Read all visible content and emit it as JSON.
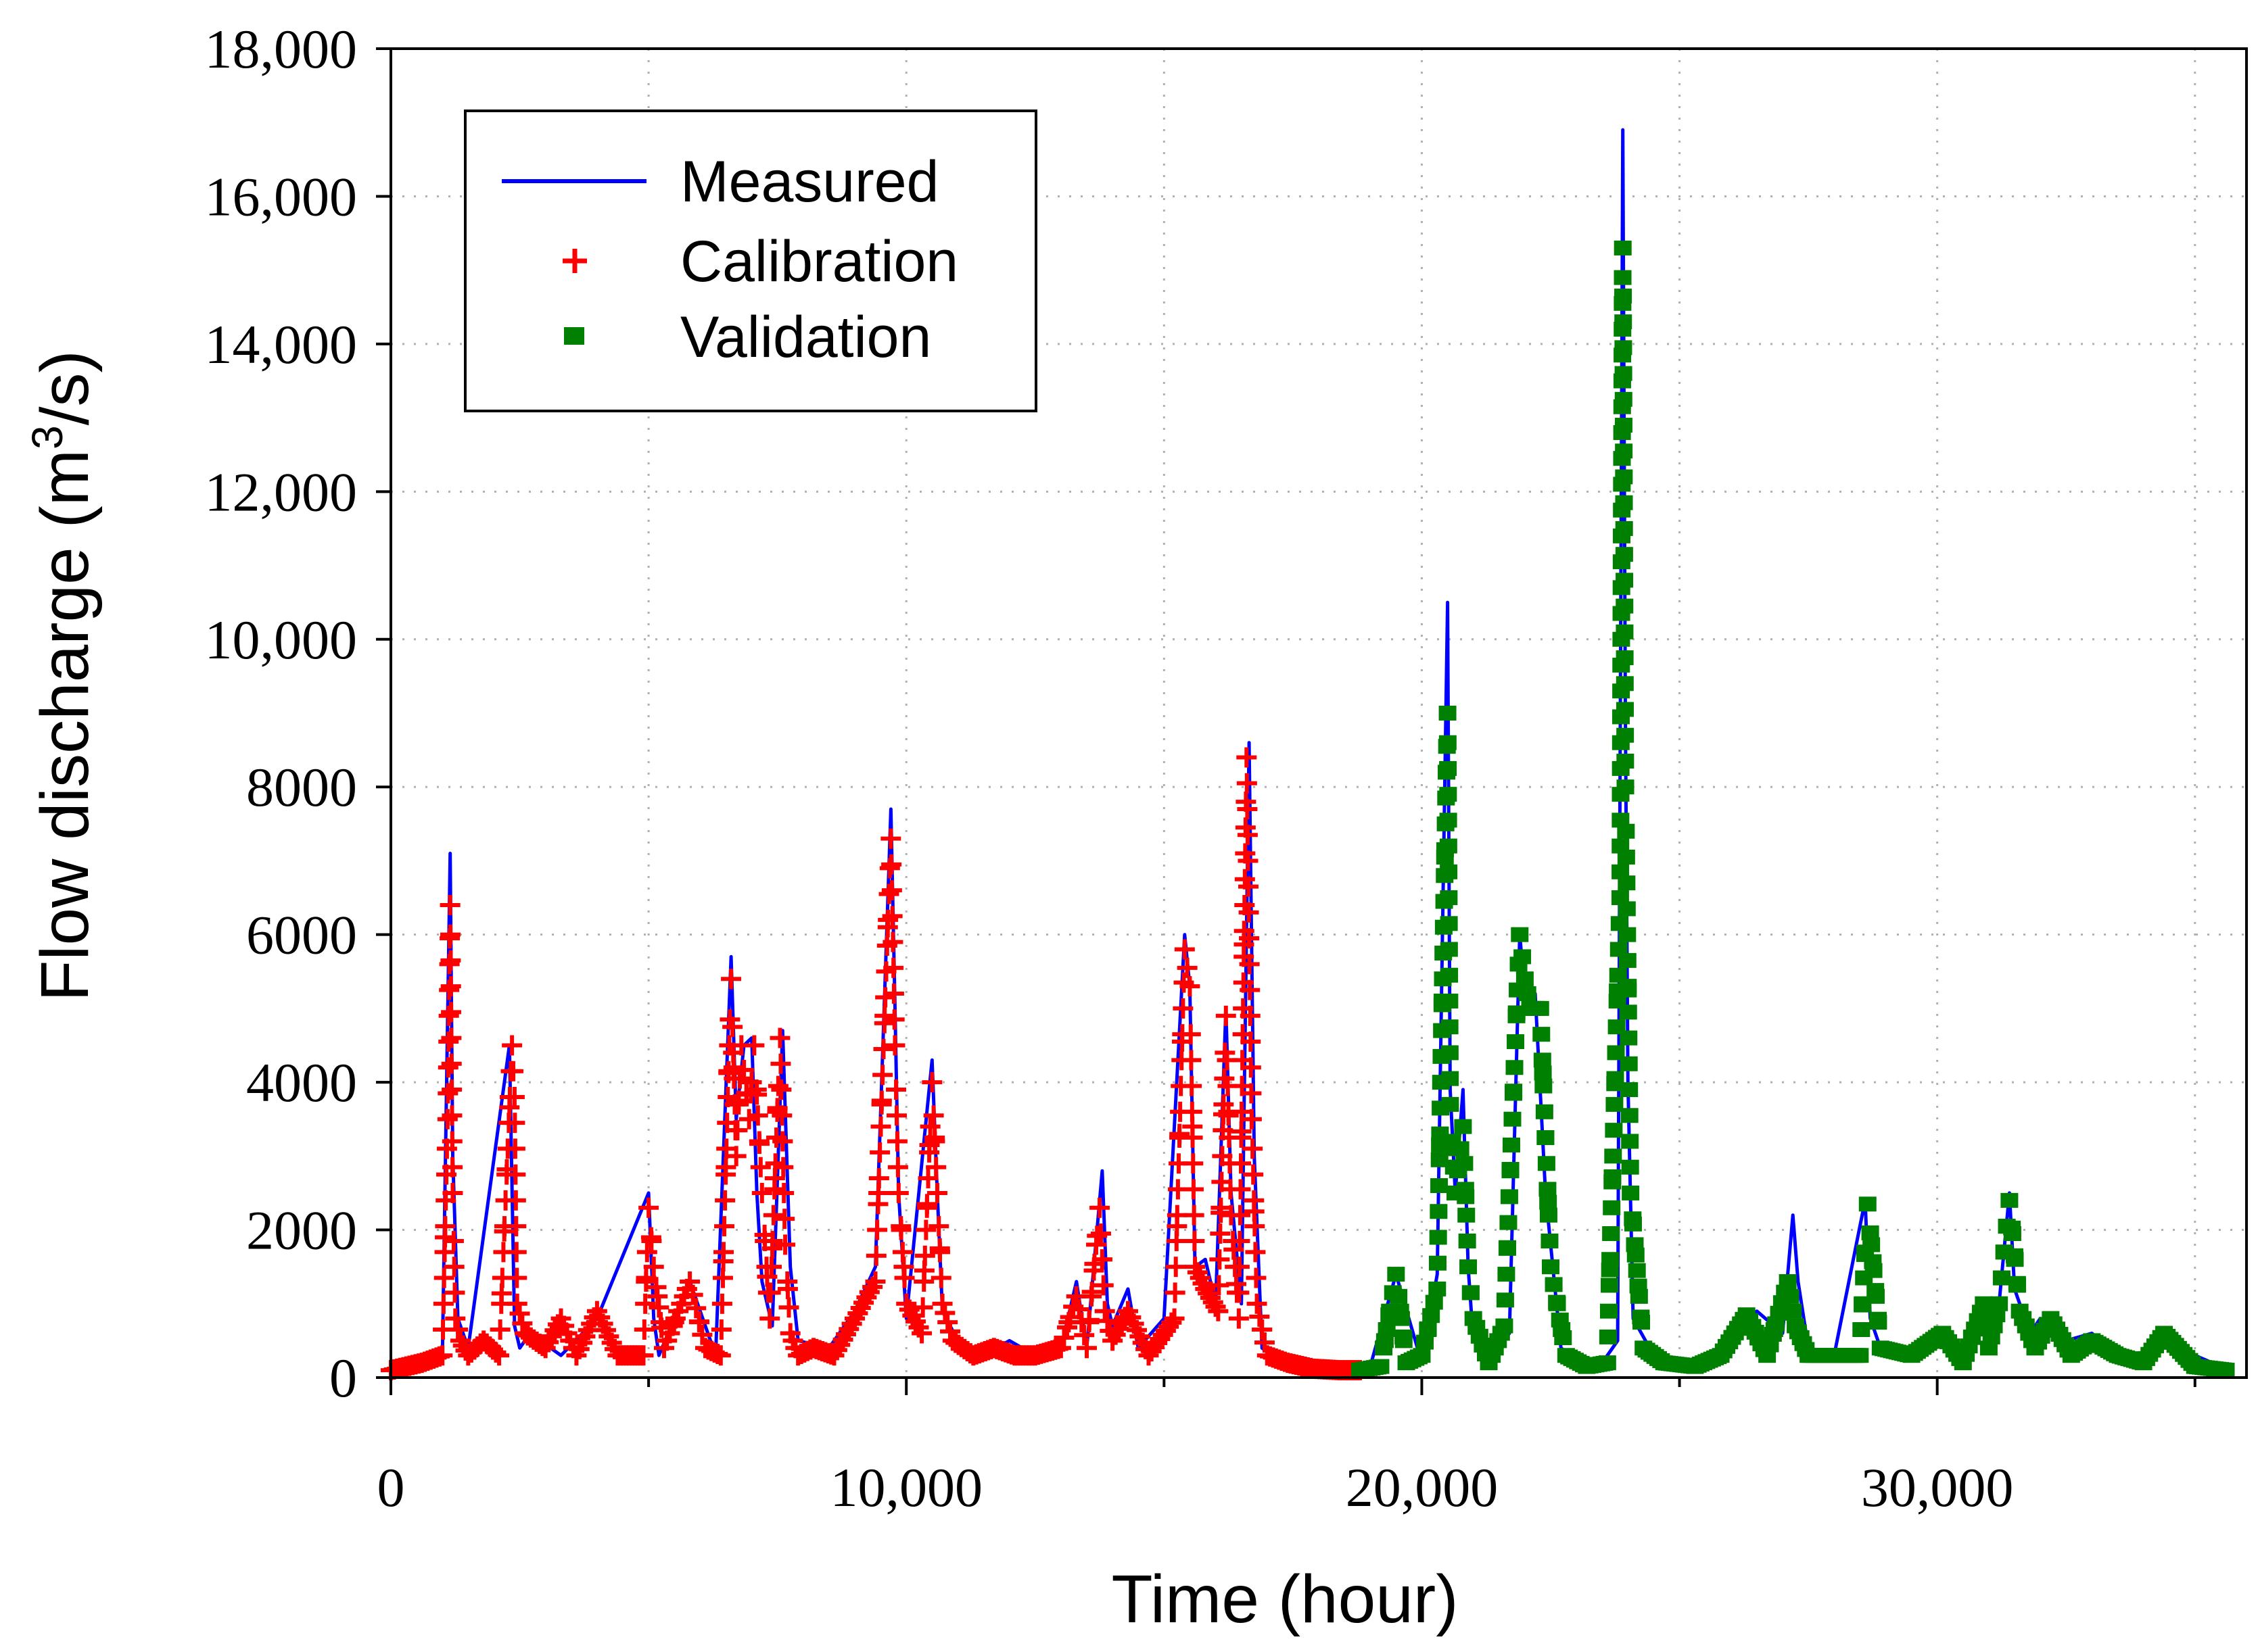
{
  "chart_data": {
    "type": "line",
    "xlabel": "Time (hour)",
    "ylabel_parts": [
      "Flow discharge (m",
      "3",
      "/s)"
    ],
    "xlim": [
      0,
      36000
    ],
    "ylim": [
      0,
      18000
    ],
    "x_ticks": [
      0,
      10000,
      20000,
      30000
    ],
    "x_tick_labels": [
      "0",
      "10,000",
      "20,000",
      "30,000"
    ],
    "x_minor_ticks": [
      5000,
      15000,
      25000,
      35000
    ],
    "y_ticks": [
      0,
      2000,
      4000,
      6000,
      8000,
      10000,
      12000,
      14000,
      16000,
      18000
    ],
    "y_tick_labels": [
      "0",
      "2000",
      "4000",
      "6000",
      "8000",
      "10,000",
      "12,000",
      "14,000",
      "16,000",
      "18,000"
    ],
    "legend": [
      {
        "label": "Measured",
        "marker": "line",
        "color": "#0000ff"
      },
      {
        "label": "Calibration",
        "marker": "+",
        "color": "#ff0000"
      },
      {
        "label": "Validation",
        "marker": "square",
        "color": "#008000"
      }
    ],
    "series": [
      {
        "name": "Measured",
        "color": "#0000ff",
        "x": [
          0,
          500,
          1000,
          1150,
          1200,
          1300,
          1500,
          2300,
          2400,
          2500,
          2700,
          3300,
          4000,
          5000,
          5100,
          5200,
          5800,
          6300,
          6600,
          6700,
          6850,
          7000,
          7100,
          7200,
          7400,
          7600,
          7750,
          7900,
          8500,
          9000,
          9400,
          9700,
          9780,
          9850,
          10000,
          10500,
          10600,
          10700,
          11000,
          11500,
          12000,
          12500,
          13000,
          13300,
          13500,
          13800,
          13900,
          14000,
          14300,
          14500,
          15000,
          15400,
          15500,
          15600,
          15800,
          16000,
          16200,
          16300,
          16500,
          16650,
          16750,
          16900,
          17300,
          18000,
          18500,
          19000,
          19500,
          20000,
          20300,
          20500,
          20550,
          20650,
          20800,
          20900,
          21000,
          21300,
          21700,
          21900,
          22000,
          22200,
          22400,
          22700,
          23000,
          23500,
          23800,
          23900,
          23950,
          24000,
          24100,
          24500,
          25000,
          25500,
          26000,
          26500,
          27000,
          27200,
          27300,
          27500,
          28000,
          28600,
          28700,
          28900,
          29500,
          30000,
          30500,
          30900,
          31000,
          31200,
          31400,
          31500,
          31800,
          32000,
          32500,
          33000,
          33500,
          34000,
          34500,
          35000,
          35500
        ],
        "y": [
          100,
          200,
          300,
          7100,
          3000,
          800,
          400,
          4500,
          700,
          400,
          600,
          300,
          800,
          2500,
          800,
          300,
          1300,
          300,
          5700,
          3500,
          4500,
          4600,
          2500,
          1300,
          700,
          4700,
          1500,
          500,
          400,
          900,
          1500,
          7700,
          5000,
          2500,
          800,
          4300,
          2500,
          900,
          500,
          300,
          500,
          300,
          400,
          1300,
          400,
          2800,
          1000,
          700,
          1200,
          400,
          800,
          6000,
          5300,
          1500,
          1600,
          1000,
          5000,
          2500,
          1000,
          8600,
          3000,
          400,
          200,
          100,
          120,
          150,
          1400,
          200,
          1400,
          10500,
          3900,
          2500,
          3900,
          1500,
          500,
          300,
          600,
          6000,
          5200,
          5200,
          2500,
          400,
          250,
          200,
          500,
          16900,
          9000,
          4000,
          800,
          300,
          200,
          200,
          400,
          900,
          600,
          2200,
          1300,
          400,
          300,
          2400,
          800,
          400,
          300,
          600,
          300,
          1000,
          800,
          1000,
          2500,
          1200,
          600,
          800,
          500,
          600,
          300,
          300,
          600,
          300,
          150
        ]
      },
      {
        "name": "Calibration",
        "color": "#ff0000",
        "x": [
          0,
          300,
          600,
          1000,
          1100,
          1150,
          1200,
          1250,
          1350,
          1500,
          1800,
          2100,
          2350,
          2400,
          2450,
          2600,
          3000,
          3300,
          3600,
          4000,
          4400,
          4900,
          5000,
          5100,
          5300,
          5800,
          6100,
          6400,
          6600,
          6700,
          6800,
          6950,
          7050,
          7200,
          7350,
          7550,
          7650,
          7750,
          7900,
          8200,
          8600,
          9000,
          9400,
          9700,
          9780,
          9850,
          10000,
          10300,
          10500,
          10600,
          10700,
          10900,
          11300,
          11700,
          12100,
          12500,
          13000,
          13300,
          13500,
          13750,
          13850,
          14000,
          14300,
          14700,
          15200,
          15400,
          15500,
          15600,
          15800,
          16050,
          16200,
          16300,
          16450,
          16600,
          16700,
          16800,
          17000,
          17400,
          17900,
          18400,
          18800
        ],
        "y": [
          100,
          150,
          200,
          300,
          3500,
          6400,
          2500,
          800,
          500,
          300,
          500,
          300,
          4500,
          3800,
          1000,
          600,
          400,
          800,
          300,
          900,
          300,
          300,
          2300,
          1500,
          400,
          1300,
          400,
          300,
          5400,
          3000,
          4500,
          3500,
          4500,
          2500,
          800,
          4600,
          1800,
          600,
          300,
          400,
          300,
          800,
          1300,
          7300,
          4500,
          2500,
          1000,
          600,
          4000,
          2500,
          1000,
          500,
          300,
          400,
          300,
          300,
          400,
          1100,
          400,
          2300,
          900,
          500,
          900,
          300,
          800,
          5800,
          5300,
          1500,
          1200,
          900,
          4900,
          2200,
          800,
          8400,
          3500,
          1000,
          300,
          200,
          120,
          100,
          100
        ]
      },
      {
        "name": "Validation",
        "color": "#008000",
        "x": [
          18800,
          19200,
          19500,
          19700,
          20000,
          20300,
          20500,
          20550,
          20650,
          20800,
          20900,
          21000,
          21300,
          21600,
          21900,
          22000,
          22100,
          22300,
          22500,
          22800,
          23200,
          23600,
          23850,
          23900,
          23950,
          24050,
          24300,
          24700,
          25300,
          25800,
          26300,
          26700,
          27100,
          27250,
          27500,
          28000,
          28500,
          28650,
          28900,
          29500,
          30100,
          30500,
          30900,
          31000,
          31200,
          31400,
          31600,
          31900,
          32200,
          32600,
          33000,
          33500,
          34000,
          34400,
          35000,
          35600
        ],
        "y": [
          100,
          150,
          1400,
          200,
          300,
          1200,
          9000,
          3700,
          2500,
          3400,
          1500,
          800,
          200,
          700,
          6000,
          5400,
          5000,
          5000,
          1500,
          300,
          150,
          200,
          6500,
          15300,
          8000,
          2500,
          400,
          200,
          150,
          300,
          850,
          300,
          1300,
          700,
          300,
          300,
          300,
          2350,
          400,
          300,
          600,
          200,
          1000,
          400,
          1000,
          2400,
          900,
          400,
          800,
          300,
          500,
          300,
          200,
          600,
          150,
          100
        ]
      }
    ]
  }
}
